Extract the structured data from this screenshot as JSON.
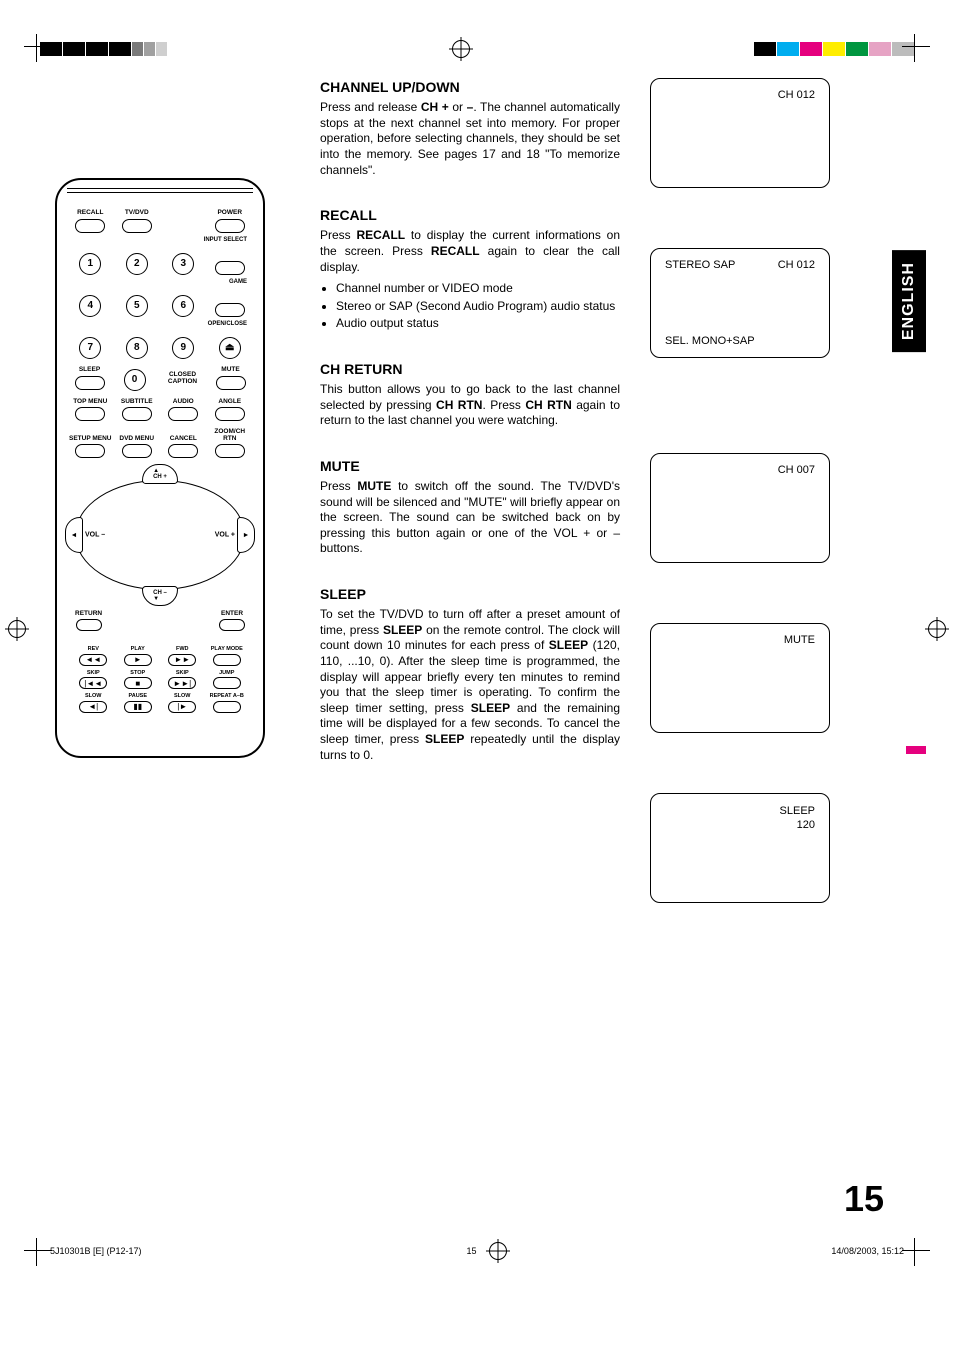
{
  "language_tab": "ENGLISH",
  "page_number": "15",
  "footer": {
    "id": "5J10301B [E] (P12-17)",
    "pg": "15",
    "datetime": "14/08/2003, 15:12"
  },
  "remote": {
    "row1": [
      "RECALL",
      "TV/DVD",
      "",
      "POWER"
    ],
    "right_labels": {
      "input": "INPUT SELECT",
      "game": "GAME",
      "open": "OPEN/CLOSE",
      "cc": "CLOSED\nCAPTION",
      "mute": "MUTE",
      "sleep": "SLEEP"
    },
    "nums": [
      "1",
      "2",
      "3",
      "4",
      "5",
      "6",
      "7",
      "8",
      "9",
      "0"
    ],
    "row_menu1": [
      "TOP MENU",
      "SUBTITLE",
      "AUDIO",
      "ANGLE"
    ],
    "row_menu2": [
      "SETUP MENU",
      "DVD MENU",
      "CANCEL",
      "ZOOM/CH RTN"
    ],
    "pad": {
      "up": "▲\nCH +",
      "down": "CH –\n▼",
      "l": "◄",
      "r": "►",
      "vol_l": "VOL –",
      "vol_r": "VOL +",
      "return": "RETURN",
      "enter": "ENTER"
    },
    "play": [
      {
        "lbl": "REV",
        "g": "◄◄"
      },
      {
        "lbl": "PLAY",
        "g": "►"
      },
      {
        "lbl": "FWD",
        "g": "►►"
      },
      {
        "lbl": "PLAY MODE",
        "g": ""
      },
      {
        "lbl": "SKIP",
        "g": "|◄◄"
      },
      {
        "lbl": "STOP",
        "g": "■"
      },
      {
        "lbl": "SKIP",
        "g": "►►|"
      },
      {
        "lbl": "JUMP",
        "g": ""
      },
      {
        "lbl": "SLOW",
        "g": "◄|"
      },
      {
        "lbl": "PAUSE",
        "g": "▮▮"
      },
      {
        "lbl": "SLOW",
        "g": "|►"
      },
      {
        "lbl": "REPEAT A–B",
        "g": ""
      }
    ]
  },
  "sections": {
    "ch": {
      "title": "CHANNEL UP/DOWN",
      "body": "Press and release <b>CH +</b> or <b>–</b>. The channel automatically stops at the next channel set into memory. For proper operation, before selecting channels, they should be set into the memory. See pages 17 and 18 \"To memorize channels\"."
    },
    "recall": {
      "title": "RECALL",
      "body": "Press <b>RECALL</b> to display the current informations on the screen. Press <b>RECALL</b> again to clear the call display.",
      "bullets": [
        "Channel number or VIDEO mode",
        "Stereo or SAP (Second Audio Program) audio status",
        "Audio output status"
      ]
    },
    "chrtn": {
      "title": "CH RETURN",
      "body": "This button allows you to go back to the last channel selected by pressing <b>CH RTN</b>. Press <b>CH RTN</b> again to return to the last channel you were watching."
    },
    "mute": {
      "title": "MUTE",
      "body": "Press <b>MUTE</b> to switch off the sound. The TV/DVD's sound will be silenced and \"MUTE\" will briefly appear on the screen. The sound can be switched back on by pressing this button again or one of the VOL + or – buttons."
    },
    "sleep": {
      "title": "SLEEP",
      "body": "To set the TV/DVD to turn off after a preset amount of time, press <b>SLEEP</b> on the remote control. The clock will count down 10 minutes for each press of <b>SLEEP</b> (120, 110, ...10, 0). After the sleep time is programmed, the display will appear briefly every ten minutes to remind you that the sleep timer is operating. To confirm the sleep timer setting, press <b>SLEEP</b> and the remaining time will be displayed for a few seconds. To cancel the sleep timer, press <b>SLEEP</b> repeatedly until the display turns to 0."
    }
  },
  "screens": {
    "s1": {
      "tr": "CH 012"
    },
    "s2": {
      "tl": "STEREO  SAP",
      "tr": "CH 012",
      "bl": "SEL. MONO+SAP"
    },
    "s3": {
      "tr": "CH 007"
    },
    "s4": {
      "tr": "MUTE"
    },
    "s5": {
      "line1": "SLEEP",
      "line2": "120"
    }
  }
}
